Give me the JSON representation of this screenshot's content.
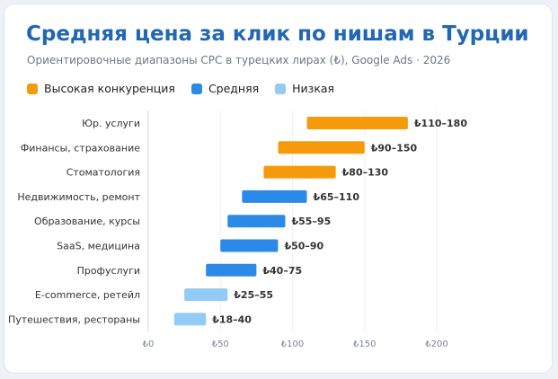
{
  "title": "Средняя цена за клик по нишам в Турции",
  "subtitle": "Ориентировочные диапазоны CPC в турецких лирах (₺), Google Ads · 2026",
  "legend": [
    {
      "label": "Высокая конкуренция",
      "color": "#f59a0b"
    },
    {
      "label": "Средняя",
      "color": "#2b8ae8"
    },
    {
      "label": "Низкая",
      "color": "#93cbf6"
    }
  ],
  "chart_data": {
    "type": "bar",
    "orientation": "horizontal-range",
    "title": "Средняя цена за клик по нишам в Турции",
    "subtitle": "Ориентировочные диапазоны CPC в турецких лирах (₺), Google Ads · 2026",
    "xlim": [
      0,
      200
    ],
    "xticks": [
      0,
      50,
      100,
      150,
      200
    ],
    "xtick_labels": [
      "₺0",
      "₺50",
      "₺100",
      "₺150",
      "₺200"
    ],
    "grid": "vertical",
    "legend_position": "top-left",
    "series": [
      {
        "name": "Высокая конкуренция",
        "color": "#f59a0b"
      },
      {
        "name": "Средняя",
        "color": "#2b8ae8"
      },
      {
        "name": "Низкая",
        "color": "#93cbf6"
      }
    ],
    "rows": [
      {
        "category": "Юр. услуги",
        "min": 110,
        "max": 180,
        "label": "₺110–180",
        "level": "Высокая конкуренция"
      },
      {
        "category": "Финансы, страхование",
        "min": 90,
        "max": 150,
        "label": "₺90–150",
        "level": "Высокая конкуренция"
      },
      {
        "category": "Стоматология",
        "min": 80,
        "max": 130,
        "label": "₺80–130",
        "level": "Высокая конкуренция"
      },
      {
        "category": "Недвижимость, ремонт",
        "min": 65,
        "max": 110,
        "label": "₺65–110",
        "level": "Средняя"
      },
      {
        "category": "Образование, курсы",
        "min": 55,
        "max": 95,
        "label": "₺55–95",
        "level": "Средняя"
      },
      {
        "category": "SaaS, медицина",
        "min": 50,
        "max": 90,
        "label": "₺50–90",
        "level": "Средняя"
      },
      {
        "category": "Профуслуги",
        "min": 40,
        "max": 75,
        "label": "₺40–75",
        "level": "Средняя"
      },
      {
        "category": "E-commerce, ретейл",
        "min": 25,
        "max": 55,
        "label": "₺25–55",
        "level": "Низкая"
      },
      {
        "category": "Путешествия, рестораны",
        "min": 18,
        "max": 40,
        "label": "₺18–40",
        "level": "Низкая"
      }
    ]
  }
}
